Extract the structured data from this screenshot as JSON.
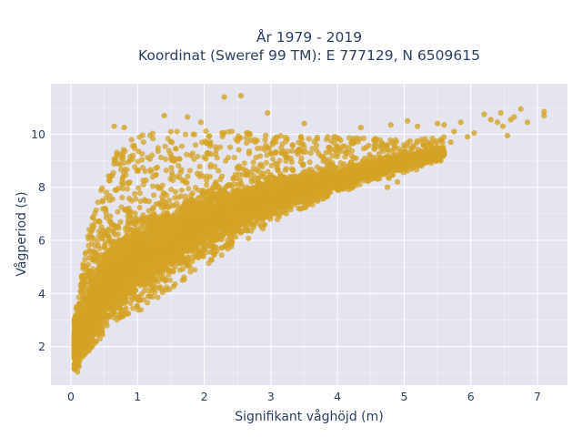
{
  "chart_data": {
    "type": "scatter",
    "title_line1": "År 1979 - 2019",
    "title_line2": "Koordinat (Sweref 99 TM): E 777129, N 6509615",
    "xlabel": "Signifikant våghöjd (m)",
    "ylabel": "Vågperiod (s)",
    "xlim": [
      -0.3,
      7.45
    ],
    "ylim": [
      0.55,
      11.9
    ],
    "xticks": [
      0,
      1,
      2,
      3,
      4,
      5,
      6,
      7
    ],
    "yticks": [
      2,
      4,
      6,
      8,
      10
    ],
    "grid": true,
    "colors": {
      "marker": "#d4a325",
      "plot_bg": "#e5e5f0",
      "grid": "#ffffff",
      "text": "#2a3f5f"
    },
    "point_cloud": {
      "count": 9000,
      "x_range": [
        0.05,
        5.6
      ],
      "ridge": [
        [
          0.05,
          2.0
        ],
        [
          0.5,
          4.3
        ],
        [
          1.0,
          5.3
        ],
        [
          2.0,
          6.7
        ],
        [
          3.0,
          7.6
        ],
        [
          4.0,
          8.3
        ],
        [
          5.0,
          9.0
        ],
        [
          5.6,
          9.3
        ]
      ],
      "lower_envelope": [
        [
          0.05,
          1.1
        ],
        [
          0.5,
          2.5
        ],
        [
          1.0,
          3.3
        ],
        [
          2.0,
          5.0
        ],
        [
          3.0,
          6.6
        ],
        [
          4.0,
          7.8
        ],
        [
          5.0,
          8.5
        ],
        [
          5.6,
          9.0
        ]
      ],
      "upper_envelope": [
        [
          0.05,
          3.0
        ],
        [
          0.3,
          7.0
        ],
        [
          0.7,
          9.4
        ],
        [
          1.0,
          10.0
        ],
        [
          2.0,
          10.2
        ],
        [
          3.0,
          10.0
        ],
        [
          4.0,
          9.9
        ],
        [
          5.0,
          9.8
        ],
        [
          5.6,
          9.9
        ]
      ]
    },
    "points": [
      {
        "x": 2.3,
        "y": 11.4
      },
      {
        "x": 2.55,
        "y": 11.45
      },
      {
        "x": 2.95,
        "y": 10.8
      },
      {
        "x": 1.4,
        "y": 10.7
      },
      {
        "x": 1.75,
        "y": 10.65
      },
      {
        "x": 1.95,
        "y": 10.45
      },
      {
        "x": 0.65,
        "y": 10.3
      },
      {
        "x": 0.8,
        "y": 10.25
      },
      {
        "x": 3.5,
        "y": 10.4
      },
      {
        "x": 4.35,
        "y": 10.25
      },
      {
        "x": 4.8,
        "y": 10.35
      },
      {
        "x": 5.05,
        "y": 10.5
      },
      {
        "x": 5.2,
        "y": 10.3
      },
      {
        "x": 5.5,
        "y": 10.4
      },
      {
        "x": 5.6,
        "y": 10.35
      },
      {
        "x": 5.75,
        "y": 10.1
      },
      {
        "x": 5.85,
        "y": 10.45
      },
      {
        "x": 6.05,
        "y": 10.05
      },
      {
        "x": 6.2,
        "y": 10.75
      },
      {
        "x": 6.3,
        "y": 10.55
      },
      {
        "x": 6.4,
        "y": 10.45
      },
      {
        "x": 6.45,
        "y": 10.8
      },
      {
        "x": 6.55,
        "y": 9.95
      },
      {
        "x": 6.6,
        "y": 10.55
      },
      {
        "x": 6.65,
        "y": 10.65
      },
      {
        "x": 6.75,
        "y": 10.95
      },
      {
        "x": 6.85,
        "y": 10.45
      },
      {
        "x": 7.1,
        "y": 10.7
      },
      {
        "x": 7.1,
        "y": 10.85
      },
      {
        "x": 6.48,
        "y": 10.3
      },
      {
        "x": 5.95,
        "y": 9.9
      },
      {
        "x": 5.7,
        "y": 9.7
      },
      {
        "x": 4.75,
        "y": 8.0
      },
      {
        "x": 4.9,
        "y": 8.2
      },
      {
        "x": 0.1,
        "y": 1.05
      },
      {
        "x": 0.12,
        "y": 1.25
      }
    ]
  }
}
